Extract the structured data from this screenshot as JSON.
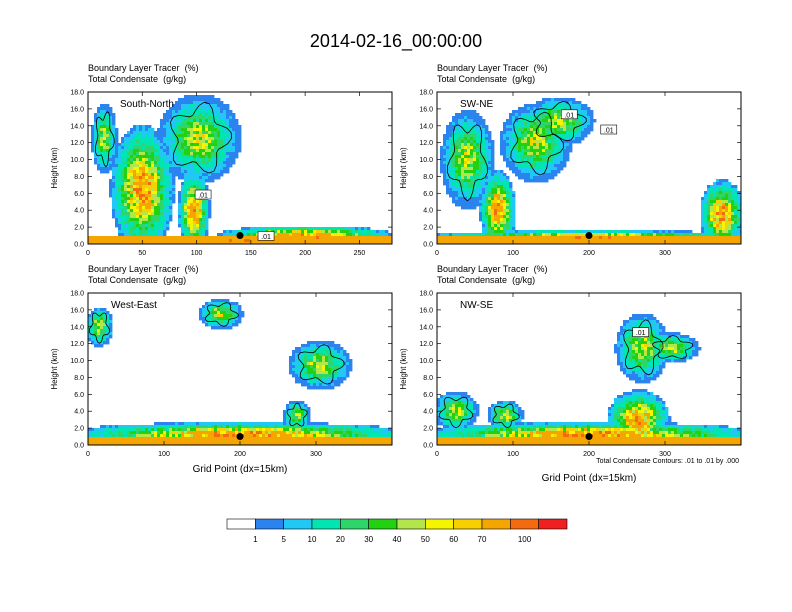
{
  "title": "2014-02-16_00:00:00",
  "panel_titles": [
    "Boundary Layer Tracer",
    "Total Condensate"
  ],
  "panel_units": [
    "(%)",
    "(g/kg)"
  ],
  "contour_note": "Total Condensate Contours: .01 to .01 by .000",
  "colorbar": {
    "colors": [
      "#ffffff",
      "#2b83f0",
      "#22c8f5",
      "#00e5b2",
      "#2ed66a",
      "#22d10f",
      "#b2e64a",
      "#f5f500",
      "#f7d000",
      "#f5a500",
      "#f36a10",
      "#f02020"
    ],
    "labels": [
      "1",
      "5",
      "10",
      "20",
      "30",
      "40",
      "50",
      "60",
      "70",
      "100"
    ]
  },
  "chart_data": [
    {
      "type": "heatmap",
      "name": "South-North",
      "title": "Boundary Layer Tracer (%) / Total Condensate (g/kg)",
      "xlabel": "",
      "ylabel": "Height (km)",
      "xlim": [
        0,
        280
      ],
      "ylim": [
        0,
        18
      ],
      "xticks": [
        0,
        50,
        100,
        150,
        200,
        250
      ],
      "yticks": [
        0,
        2,
        4,
        6,
        8,
        10,
        12,
        14,
        16,
        18
      ],
      "plumes": [
        [
          25,
          75,
          0,
          13
        ],
        [
          5,
          25,
          9,
          16
        ],
        [
          70,
          135,
          8,
          17
        ],
        [
          85,
          110,
          0,
          8
        ],
        [
          130,
          270,
          0,
          2
        ],
        [
          0,
          280,
          0,
          1
        ]
      ],
      "marker": [
        140,
        1.0
      ],
      "contour_labels": [
        {
          "text": ".01",
          "x": 106,
          "y": 5.8
        },
        {
          "text": ".01",
          "x": 164,
          "y": 0.9
        }
      ]
    },
    {
      "type": "heatmap",
      "name": "SW-NE",
      "title": "Boundary Layer Tracer (%) / Total Condensate (g/kg)",
      "xlabel": "",
      "ylabel": "Height (km)",
      "xlim": [
        0,
        400
      ],
      "ylim": [
        0,
        18
      ],
      "xticks": [
        0,
        100,
        200,
        300
      ],
      "yticks": [
        0,
        2,
        4,
        6,
        8,
        10,
        12,
        14,
        16,
        18
      ],
      "plumes": [
        [
          10,
          70,
          5,
          15
        ],
        [
          90,
          170,
          8,
          16
        ],
        [
          120,
          200,
          12,
          17
        ],
        [
          60,
          100,
          0,
          8
        ],
        [
          350,
          400,
          0,
          7
        ],
        [
          0,
          400,
          0,
          1.5
        ]
      ],
      "marker": [
        200,
        1.0
      ],
      "contour_labels": [
        {
          "text": ".01",
          "x": 174,
          "y": 15.3
        },
        {
          "text": ".01",
          "x": 226,
          "y": 13.5
        }
      ]
    },
    {
      "type": "heatmap",
      "name": "West-East",
      "title": "Boundary Layer Tracer (%) / Total Condensate (g/kg)",
      "xlabel": "Grid Point (dx=15km)",
      "ylabel": "Height (km)",
      "xlim": [
        0,
        400
      ],
      "ylim": [
        0,
        18
      ],
      "xticks": [
        0,
        100,
        200,
        300
      ],
      "yticks": [
        0,
        2,
        4,
        6,
        8,
        10,
        12,
        14,
        16,
        18
      ],
      "plumes": [
        [
          0,
          30,
          12,
          16
        ],
        [
          150,
          200,
          14,
          17
        ],
        [
          270,
          340,
          7,
          12
        ],
        [
          260,
          290,
          2,
          5
        ],
        [
          0,
          400,
          0,
          2.5
        ]
      ],
      "marker": [
        200,
        1.0
      ],
      "contour_labels": []
    },
    {
      "type": "heatmap",
      "name": "NW-SE",
      "title": "Boundary Layer Tracer (%) / Total Condensate (g/kg)",
      "xlabel": "Grid Point (dx=15km)",
      "ylabel": "Height (km)",
      "xlim": [
        0,
        400
      ],
      "ylim": [
        0,
        18
      ],
      "xticks": [
        0,
        100,
        200,
        300
      ],
      "yticks": [
        0,
        2,
        4,
        6,
        8,
        10,
        12,
        14,
        16,
        18
      ],
      "plumes": [
        [
          0,
          50,
          2,
          6
        ],
        [
          70,
          110,
          2,
          5
        ],
        [
          240,
          300,
          8,
          15
        ],
        [
          280,
          340,
          10,
          13
        ],
        [
          0,
          400,
          0,
          2.5
        ],
        [
          230,
          300,
          0,
          6
        ]
      ],
      "marker": [
        200,
        1.0
      ],
      "contour_labels": [
        {
          "text": ".01",
          "x": 268,
          "y": 13.3
        }
      ]
    }
  ]
}
